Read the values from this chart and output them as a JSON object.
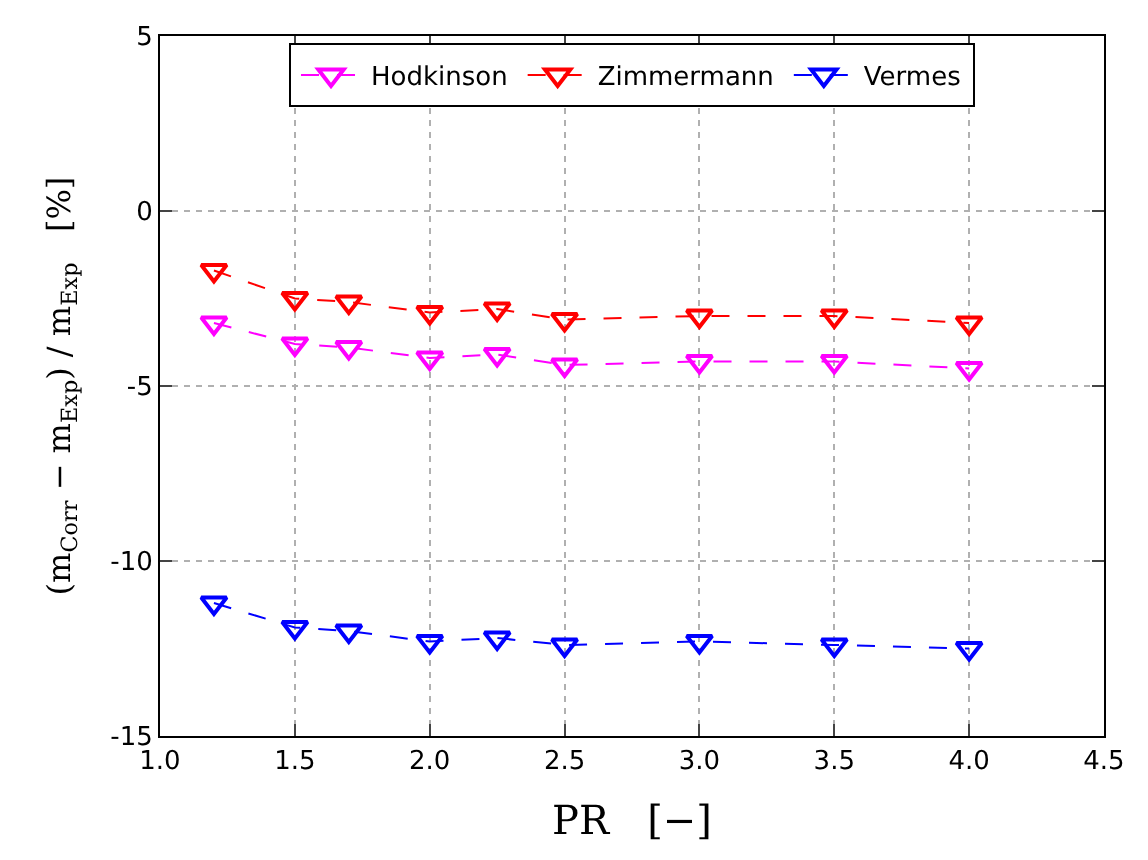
{
  "chart_data": {
    "type": "line",
    "xlabel": "PR   [−]",
    "ylabel": "(m$_{Corr}$ − m$_{Exp}$) / m$_{Exp}$   [%]",
    "x": [
      1.2,
      1.5,
      1.7,
      2.0,
      2.25,
      2.5,
      3.0,
      3.5,
      4.0
    ],
    "series": [
      {
        "name": "Hodkinson",
        "color": "#ff00ff",
        "values": [
          -3.2,
          -3.8,
          -3.9,
          -4.2,
          -4.1,
          -4.4,
          -4.3,
          -4.3,
          -4.5
        ]
      },
      {
        "name": "Zimmermann",
        "color": "#ff0000",
        "values": [
          -1.7,
          -2.5,
          -2.6,
          -2.9,
          -2.8,
          -3.1,
          -3.0,
          -3.0,
          -3.2
        ]
      },
      {
        "name": "Vermes",
        "color": "#0000ff",
        "values": [
          -11.2,
          -11.9,
          -12.0,
          -12.3,
          -12.2,
          -12.4,
          -12.3,
          -12.4,
          -12.5
        ]
      }
    ],
    "xlim": [
      1.0,
      4.5
    ],
    "xticks": [
      {
        "value": 1.0,
        "label": "1.0"
      },
      {
        "value": 1.5,
        "label": "1.5"
      },
      {
        "value": 2.0,
        "label": "2.0"
      },
      {
        "value": 2.5,
        "label": "2.5"
      },
      {
        "value": 3.0,
        "label": "3.0"
      },
      {
        "value": 3.5,
        "label": "3.5"
      },
      {
        "value": 4.0,
        "label": "4.0"
      },
      {
        "value": 4.5,
        "label": "4.5"
      }
    ],
    "ylim": [
      -15,
      5
    ],
    "yticks": [
      -15,
      -10,
      -5,
      0,
      5
    ],
    "grid": true,
    "legend": "top",
    "marker": "triangle",
    "line_style": "dashed"
  }
}
